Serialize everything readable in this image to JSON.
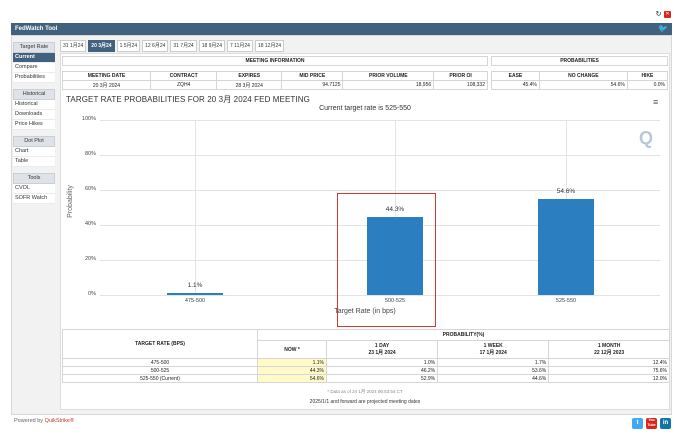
{
  "app": {
    "title": "FedWatch Tool",
    "refresh_icon": "refresh-icon",
    "close_icon": "close-icon",
    "twitter_icon": "twitter-bird-icon"
  },
  "sidebar": {
    "target_rate": "Target Rate",
    "current": "Current",
    "compare": "Compare",
    "probabilities": "Probabilities",
    "historical_head": "Historical",
    "historical": "Historical",
    "downloads": "Downloads",
    "price_hikes": "Price Hikes",
    "dot_plot_head": "Dot Plot",
    "chart": "Chart",
    "table": "Table",
    "tools_head": "Tools",
    "cvol": "CVOL",
    "sofr_watch": "SOFR Watch"
  },
  "tabs": [
    "31 1月24",
    "20 3月24",
    "1 5月24",
    "12 6月24",
    "31 7月24",
    "18 9月24",
    "7 11月24",
    "18 12月24"
  ],
  "meeting_info": {
    "title": "MEETING INFORMATION",
    "headers": [
      "MEETING DATE",
      "CONTRACT",
      "EXPIRES",
      "MID PRICE",
      "PRIOR VOLUME",
      "PRIOR OI"
    ],
    "values": [
      "20 3月 2024",
      "ZQH4",
      "28 3月 2024",
      "94.7125",
      "18,956",
      "108,332"
    ]
  },
  "probabilities_box": {
    "title": "PROBABILITIES",
    "headers": [
      "EASE",
      "NO CHANGE",
      "HIKE"
    ],
    "values": [
      "45.4%",
      "54.6%",
      "0.0%"
    ]
  },
  "chart_title": "TARGET RATE PROBABILITIES FOR 20 3月 2024 FED MEETING",
  "menu_icon": "hamburger-menu-icon",
  "logo_letter": "Q",
  "chart_data": {
    "type": "bar",
    "title": "Current target rate is 525-550",
    "xlabel": "Target Rate (in bps)",
    "ylabel": "Probability",
    "categories": [
      "475-500",
      "500-525",
      "525-550"
    ],
    "values": [
      1.1,
      44.3,
      54.6
    ],
    "value_labels": [
      "1.1%",
      "44.3%",
      "54.6%"
    ],
    "ylim": [
      0,
      100
    ],
    "yticks": [
      "0%",
      "20%",
      "40%",
      "60%",
      "80%",
      "100%"
    ],
    "highlighted_category": "500-525",
    "bar_color": "#2b7fc0"
  },
  "prob_table": {
    "col_target": "TARGET RATE (BPS)",
    "col_prob": "PROBABILITY(%)",
    "sub": [
      {
        "l1": "NOW *",
        "l2": ""
      },
      {
        "l1": "1 DAY",
        "l2": "23 1月 2024"
      },
      {
        "l1": "1 WEEK",
        "l2": "17 1月 2024"
      },
      {
        "l1": "1 MONTH",
        "l2": "22 12月 2023"
      }
    ],
    "rows": [
      {
        "rate": "475-500",
        "now": "1.1%",
        "d1": "1.0%",
        "w1": "1.7%",
        "m1": "12.4%"
      },
      {
        "rate": "500-525",
        "now": "44.3%",
        "d1": "46.2%",
        "w1": "53.6%",
        "m1": "75.6%"
      },
      {
        "rate": "525-550 (Current)",
        "now": "54.6%",
        "d1": "52.9%",
        "w1": "44.6%",
        "m1": "12.0%"
      }
    ]
  },
  "data_note": "* Data as of 24 1月 2024 06:53:54 CT",
  "footnote": "2025/1/1 and forward are projected meeting dates",
  "powered_by": "Powered by",
  "powered_brand": "QuikStrike®",
  "social": {
    "twitter": "t",
    "youtube": "You Tube",
    "linkedin": "in"
  }
}
